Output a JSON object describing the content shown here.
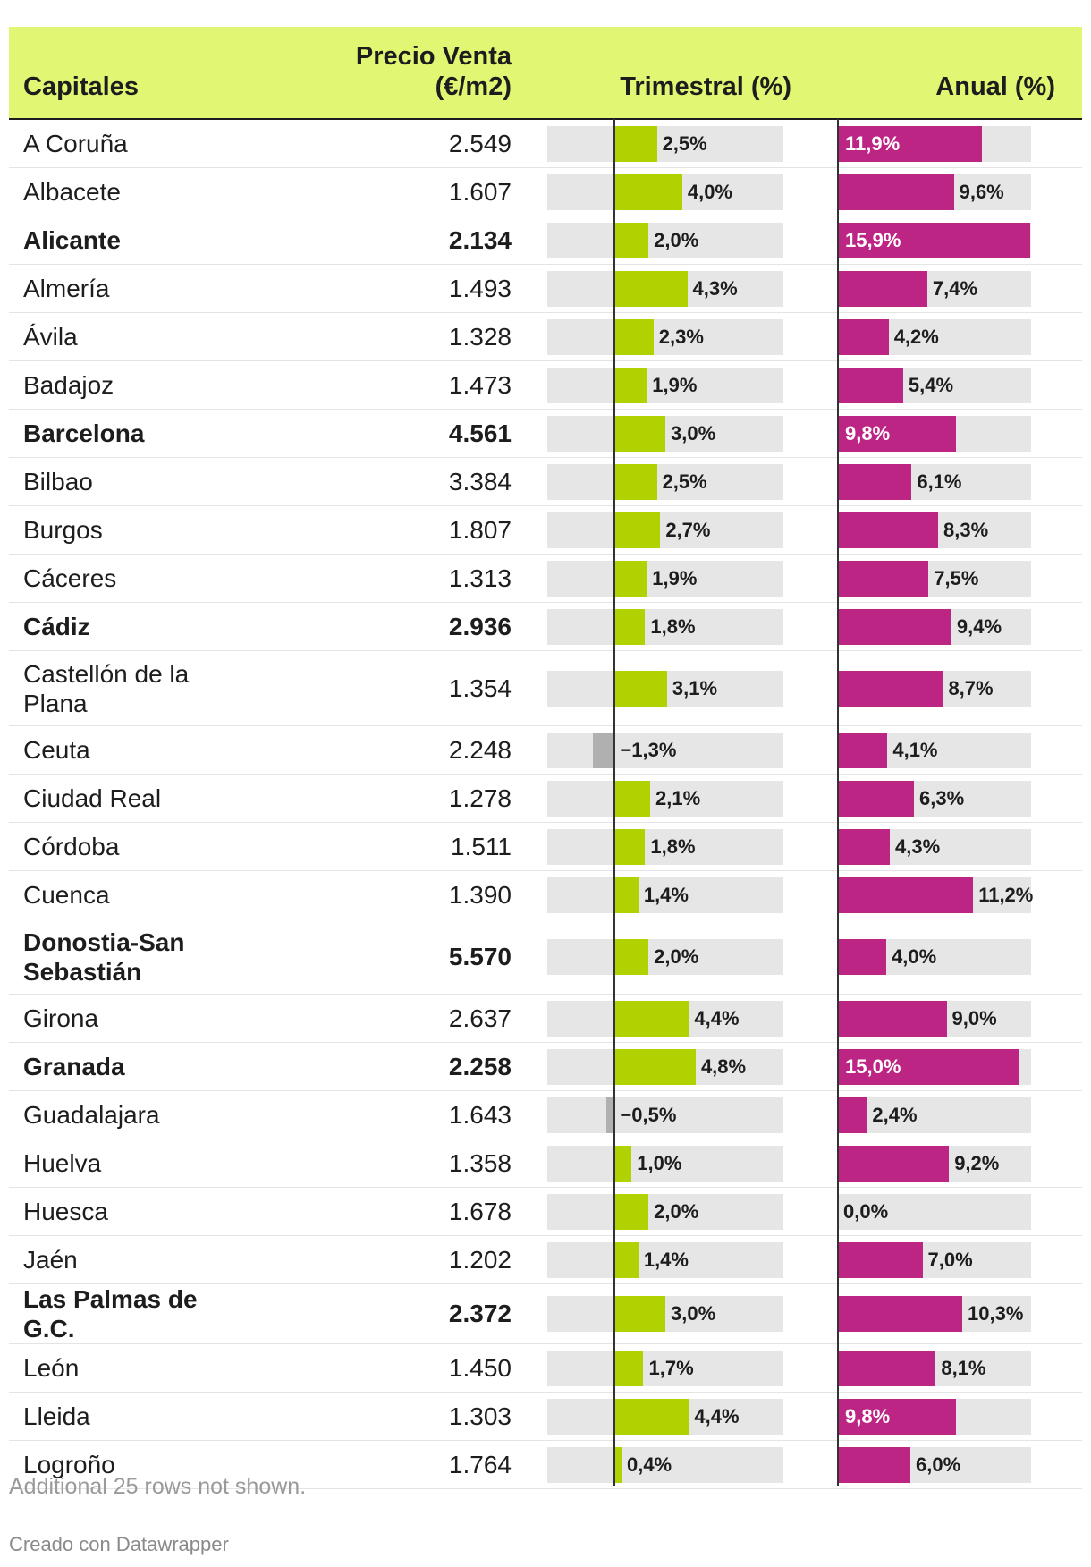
{
  "colors": {
    "header_bg": "#e1f773",
    "trimestral_bar": "#b2d100",
    "trimestral_negative_bar": "#b0b0b0",
    "anual_bar": "#bd2585",
    "track": "#e6e6e6"
  },
  "header": {
    "capitales": "Capitales",
    "precio_line1": "Precio Venta",
    "precio_line2": "(€/m2)",
    "trimestral": "Trimestral (%)",
    "anual": "Anual (%)"
  },
  "chart_data": {
    "type": "table",
    "columns": [
      "Capitales",
      "Precio Venta (€/m2)",
      "Trimestral (%)",
      "Anual (%)"
    ],
    "trimestral_range": [
      -4,
      10
    ],
    "anual_range": [
      0,
      16
    ],
    "rows": [
      {
        "city": "A Coruña",
        "price": "2.549",
        "trimestral": 2.5,
        "trimestral_label": "2,5%",
        "anual": 11.9,
        "anual_label": "11,9%",
        "bold": false
      },
      {
        "city": "Albacete",
        "price": "1.607",
        "trimestral": 4.0,
        "trimestral_label": "4,0%",
        "anual": 9.6,
        "anual_label": "9,6%",
        "bold": false
      },
      {
        "city": "Alicante",
        "price": "2.134",
        "trimestral": 2.0,
        "trimestral_label": "2,0%",
        "anual": 15.9,
        "anual_label": "15,9%",
        "bold": true
      },
      {
        "city": "Almería",
        "price": "1.493",
        "trimestral": 4.3,
        "trimestral_label": "4,3%",
        "anual": 7.4,
        "anual_label": "7,4%",
        "bold": false
      },
      {
        "city": "Ávila",
        "price": "1.328",
        "trimestral": 2.3,
        "trimestral_label": "2,3%",
        "anual": 4.2,
        "anual_label": "4,2%",
        "bold": false
      },
      {
        "city": "Badajoz",
        "price": "1.473",
        "trimestral": 1.9,
        "trimestral_label": "1,9%",
        "anual": 5.4,
        "anual_label": "5,4%",
        "bold": false
      },
      {
        "city": "Barcelona",
        "price": "4.561",
        "trimestral": 3.0,
        "trimestral_label": "3,0%",
        "anual": 9.8,
        "anual_label": "9,8%",
        "bold": true
      },
      {
        "city": "Bilbao",
        "price": "3.384",
        "trimestral": 2.5,
        "trimestral_label": "2,5%",
        "anual": 6.1,
        "anual_label": "6,1%",
        "bold": false
      },
      {
        "city": "Burgos",
        "price": "1.807",
        "trimestral": 2.7,
        "trimestral_label": "2,7%",
        "anual": 8.3,
        "anual_label": "8,3%",
        "bold": false
      },
      {
        "city": "Cáceres",
        "price": "1.313",
        "trimestral": 1.9,
        "trimestral_label": "1,9%",
        "anual": 7.5,
        "anual_label": "7,5%",
        "bold": false
      },
      {
        "city": "Cádiz",
        "price": "2.936",
        "trimestral": 1.8,
        "trimestral_label": "1,8%",
        "anual": 9.4,
        "anual_label": "9,4%",
        "bold": true
      },
      {
        "city": "Castellón de la Plana",
        "price": "1.354",
        "trimestral": 3.1,
        "trimestral_label": "3,1%",
        "anual": 8.7,
        "anual_label": "8,7%",
        "bold": false
      },
      {
        "city": "Ceuta",
        "price": "2.248",
        "trimestral": -1.3,
        "trimestral_label": "−1,3%",
        "anual": 4.1,
        "anual_label": "4,1%",
        "bold": false
      },
      {
        "city": "Ciudad Real",
        "price": "1.278",
        "trimestral": 2.1,
        "trimestral_label": "2,1%",
        "anual": 6.3,
        "anual_label": "6,3%",
        "bold": false
      },
      {
        "city": "Córdoba",
        "price": "1.511",
        "trimestral": 1.8,
        "trimestral_label": "1,8%",
        "anual": 4.3,
        "anual_label": "4,3%",
        "bold": false
      },
      {
        "city": "Cuenca",
        "price": "1.390",
        "trimestral": 1.4,
        "trimestral_label": "1,4%",
        "anual": 11.2,
        "anual_label": "11,2%",
        "bold": false
      },
      {
        "city": "Donostia-San Sebastián",
        "price": "5.570",
        "trimestral": 2.0,
        "trimestral_label": "2,0%",
        "anual": 4.0,
        "anual_label": "4,0%",
        "bold": true
      },
      {
        "city": "Girona",
        "price": "2.637",
        "trimestral": 4.4,
        "trimestral_label": "4,4%",
        "anual": 9.0,
        "anual_label": "9,0%",
        "bold": false
      },
      {
        "city": "Granada",
        "price": "2.258",
        "trimestral": 4.8,
        "trimestral_label": "4,8%",
        "anual": 15.0,
        "anual_label": "15,0%",
        "bold": true
      },
      {
        "city": "Guadalajara",
        "price": "1.643",
        "trimestral": -0.5,
        "trimestral_label": "−0,5%",
        "anual": 2.4,
        "anual_label": "2,4%",
        "bold": false
      },
      {
        "city": "Huelva",
        "price": "1.358",
        "trimestral": 1.0,
        "trimestral_label": "1,0%",
        "anual": 9.2,
        "anual_label": "9,2%",
        "bold": false
      },
      {
        "city": "Huesca",
        "price": "1.678",
        "trimestral": 2.0,
        "trimestral_label": "2,0%",
        "anual": 0.0,
        "anual_label": "0,0%",
        "bold": false
      },
      {
        "city": "Jaén",
        "price": "1.202",
        "trimestral": 1.4,
        "trimestral_label": "1,4%",
        "anual": 7.0,
        "anual_label": "7,0%",
        "bold": false
      },
      {
        "city": "Las Palmas de G.C.",
        "price": "2.372",
        "trimestral": 3.0,
        "trimestral_label": "3,0%",
        "anual": 10.3,
        "anual_label": "10,3%",
        "bold": true
      },
      {
        "city": "León",
        "price": "1.450",
        "trimestral": 1.7,
        "trimestral_label": "1,7%",
        "anual": 8.1,
        "anual_label": "8,1%",
        "bold": false
      },
      {
        "city": "Lleida",
        "price": "1.303",
        "trimestral": 4.4,
        "trimestral_label": "4,4%",
        "anual": 9.8,
        "anual_label": "9,8%",
        "bold": false
      },
      {
        "city": "Logroño",
        "price": "1.764",
        "trimestral": 0.4,
        "trimestral_label": "0,4%",
        "anual": 6.0,
        "anual_label": "6,0%",
        "bold": false
      }
    ]
  },
  "footer": {
    "note": "Additional 25 rows not shown.",
    "credit": "Creado con Datawrapper"
  }
}
